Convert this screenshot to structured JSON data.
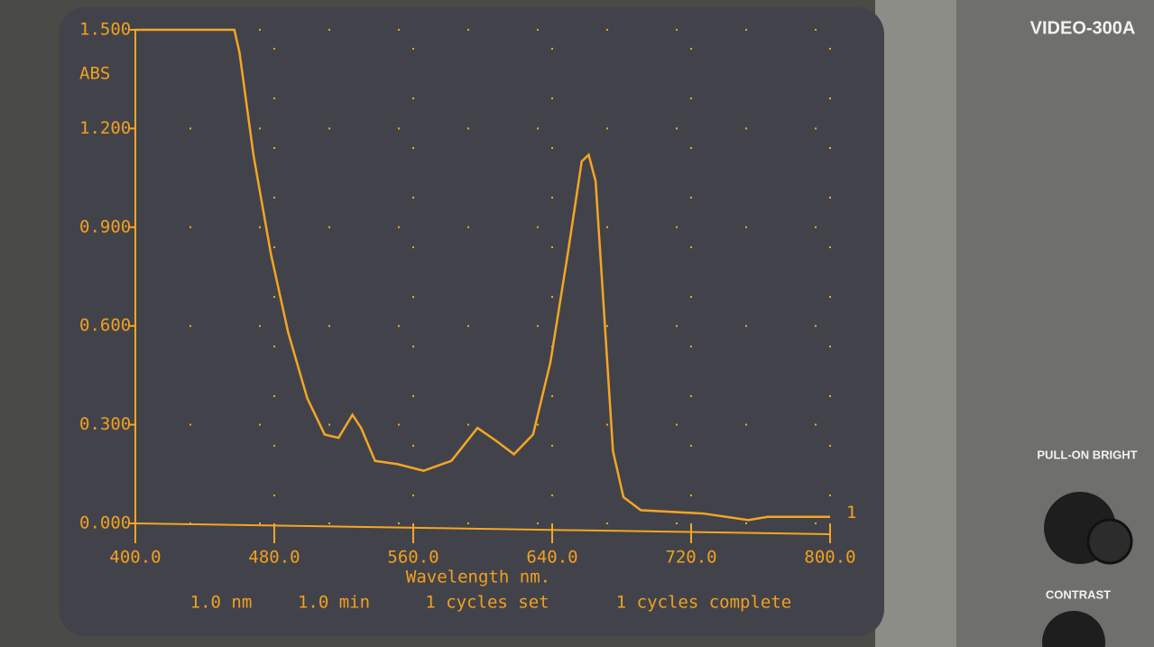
{
  "chart_data": {
    "type": "line",
    "instrument": "VIDEO-300A",
    "y_label": "ABS",
    "x_label": "Wavelength nm.",
    "status": [
      "1.0 nm",
      "1.0 min",
      "1 cycles set",
      "1 cycles complete"
    ],
    "x": [
      400,
      457,
      460,
      468,
      478,
      488,
      499,
      509,
      517,
      525,
      530,
      538,
      551,
      566,
      582,
      597,
      608,
      618,
      629,
      639,
      649,
      657,
      661,
      665,
      670,
      675,
      681,
      691,
      727,
      753,
      764,
      800
    ],
    "series": [
      {
        "name": "1",
        "color": "#f5a623",
        "values": [
          1.5,
          1.5,
          1.43,
          1.12,
          0.82,
          0.58,
          0.38,
          0.27,
          0.26,
          0.33,
          0.29,
          0.19,
          0.18,
          0.16,
          0.19,
          0.29,
          0.25,
          0.21,
          0.27,
          0.49,
          0.82,
          1.1,
          1.12,
          1.04,
          0.63,
          0.22,
          0.08,
          0.04,
          0.03,
          0.01,
          0.02,
          0.02
        ]
      }
    ],
    "xlim": [
      400,
      800
    ],
    "xticks": [
      {
        "value": 400,
        "label": "400.0"
      },
      {
        "value": 480,
        "label": "480.0"
      },
      {
        "value": 560,
        "label": "560.0"
      },
      {
        "value": 640,
        "label": "640.0"
      },
      {
        "value": 720,
        "label": "720.0"
      },
      {
        "value": 800,
        "label": "800.0"
      }
    ],
    "ylim": [
      0,
      1.5
    ],
    "yticks": [
      {
        "value": 0,
        "label": "0.000"
      },
      {
        "value": 0.3,
        "label": "0.300"
      },
      {
        "value": 0.6,
        "label": "0.600"
      },
      {
        "value": 0.9,
        "label": "0.900"
      },
      {
        "value": 1.2,
        "label": "1.200"
      },
      {
        "value": 1.5,
        "label": "1.500"
      }
    ],
    "grid": true
  },
  "panel": {
    "knob1": "PULL-ON BRIGHT",
    "knob2": "CONTRAST"
  }
}
